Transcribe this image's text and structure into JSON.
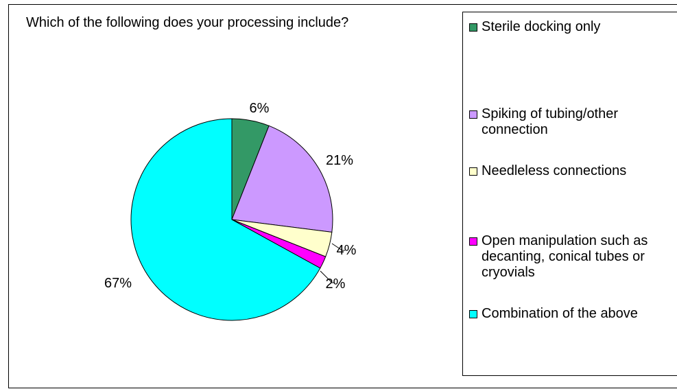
{
  "chart_data": {
    "type": "pie",
    "title": "Which of the following does your processing include?",
    "series": [
      {
        "name": "Sterile docking only",
        "value": 6,
        "label": "6%",
        "color": "#339966"
      },
      {
        "name": "Spiking of tubing/other connection",
        "value": 21,
        "label": "21%",
        "color": "#CC99FF"
      },
      {
        "name": "Needleless connections",
        "value": 4,
        "label": "4%",
        "color": "#FFFFCC"
      },
      {
        "name": "Open manipulation such as decanting, conical tubes or cryovials",
        "value": 2,
        "label": "2%",
        "color": "#FF00FF"
      },
      {
        "name": "Combination of the above",
        "value": 67,
        "label": "67%",
        "color": "#00FFFF"
      }
    ],
    "legend_position": "right"
  }
}
